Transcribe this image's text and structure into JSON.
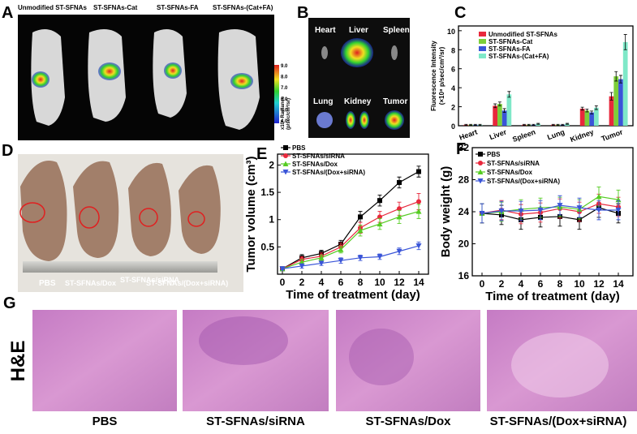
{
  "panel_a": {
    "label": "A",
    "mice": [
      "Unmodified ST-SFNAs",
      "ST-SFNAs-Cat",
      "ST-SFNAs-FA",
      "ST-SFNAs-(Cat+FA)"
    ],
    "colorbar_ticks": [
      "9.0",
      "8.0",
      "7.0",
      "6.0",
      "5.0",
      "4.0"
    ],
    "colorbar_title": [
      "x10⁸ Radiance",
      "(p/sec/cm²/sr)"
    ]
  },
  "panel_b": {
    "label": "B",
    "organs": [
      "Heart",
      "Liver",
      "Spleen",
      "Lung",
      "Kidney",
      "Tumor"
    ]
  },
  "panel_d": {
    "label": "D",
    "groups": [
      "PBS",
      "ST-SFNAs/Dox",
      "ST-SFNAs/siRNA",
      "ST-SFNAs/(Dox+siRNA)"
    ]
  },
  "panel_g": {
    "label": "G",
    "stain": "H&E",
    "groups": [
      "PBS",
      "ST-SFNAs/siRNA",
      "ST-SFNAs/Dox",
      "ST-SFNAs/(Dox+siRNA)"
    ]
  },
  "chart_data": [
    {
      "type": "bar",
      "panel_label": "C",
      "ylabel": [
        "Fluorescence Intensity",
        "(×10⁸ p/sec/cm²/sr)"
      ],
      "categories": [
        "Heart",
        "Liver",
        "Spleen",
        "Lung",
        "Kidney",
        "Tumor"
      ],
      "series": [
        {
          "name": "Unmodified ST-SFNAs",
          "color": "#e8283c",
          "values": [
            0.1,
            2.1,
            0.1,
            0.1,
            1.8,
            3.1
          ],
          "errors": [
            0.05,
            0.2,
            0.05,
            0.05,
            0.15,
            0.4
          ]
        },
        {
          "name": "ST-SFNAs-Cat",
          "color": "#7ccf3a",
          "values": [
            0.1,
            2.3,
            0.1,
            0.1,
            1.6,
            5.2
          ],
          "errors": [
            0.05,
            0.2,
            0.05,
            0.05,
            0.15,
            0.5
          ]
        },
        {
          "name": "ST-SFNAs-FA",
          "color": "#3a55d8",
          "values": [
            0.1,
            1.6,
            0.1,
            0.1,
            1.4,
            4.9
          ],
          "errors": [
            0.05,
            0.2,
            0.05,
            0.05,
            0.15,
            0.4
          ]
        },
        {
          "name": "ST-SFNAs-(Cat+FA)",
          "color": "#7fe8c8",
          "values": [
            0.1,
            3.3,
            0.2,
            0.2,
            1.9,
            8.8
          ],
          "errors": [
            0.05,
            0.3,
            0.05,
            0.05,
            0.2,
            0.8
          ]
        }
      ],
      "ylim": [
        0,
        10.5
      ],
      "yticks": [
        0,
        2,
        4,
        6,
        8,
        10
      ]
    },
    {
      "type": "line",
      "panel_label": "E",
      "xlabel": "Time of treatment (day)",
      "ylabel": "Tumor volume (cm³)",
      "x": [
        0,
        2,
        4,
        6,
        8,
        10,
        12,
        14
      ],
      "series": [
        {
          "name": "PBS",
          "color": "#000000",
          "marker": "square",
          "values": [
            0.1,
            0.3,
            0.38,
            0.55,
            1.05,
            1.35,
            1.68,
            1.88
          ],
          "errors": [
            0.02,
            0.06,
            0.06,
            0.07,
            0.1,
            0.1,
            0.1,
            0.1
          ]
        },
        {
          "name": "ST-SFNAs/siRNA",
          "color": "#e8283c",
          "marker": "circle",
          "values": [
            0.1,
            0.27,
            0.33,
            0.5,
            0.85,
            1.05,
            1.2,
            1.33
          ],
          "errors": [
            0.02,
            0.05,
            0.06,
            0.07,
            0.1,
            0.1,
            0.12,
            0.15
          ]
        },
        {
          "name": "ST-SFNAs/Dox",
          "color": "#55cc22",
          "marker": "triangle",
          "values": [
            0.1,
            0.22,
            0.3,
            0.45,
            0.8,
            0.92,
            1.05,
            1.15
          ],
          "errors": [
            0.02,
            0.05,
            0.05,
            0.06,
            0.1,
            0.1,
            0.12,
            0.13
          ]
        },
        {
          "name": "ST-SFNAs/(Dox+siRNA)",
          "color": "#3a55d8",
          "marker": "down",
          "values": [
            0.1,
            0.15,
            0.2,
            0.25,
            0.3,
            0.32,
            0.42,
            0.52
          ],
          "errors": [
            0.02,
            0.04,
            0.04,
            0.05,
            0.05,
            0.05,
            0.06,
            0.07
          ]
        }
      ],
      "xlim": [
        -0.5,
        15
      ],
      "xticks": [
        0,
        2,
        4,
        6,
        8,
        10,
        12,
        14
      ],
      "ylim": [
        0,
        2.2
      ],
      "yticks": [
        0.5,
        1,
        1.5,
        2
      ]
    },
    {
      "type": "line",
      "panel_label": "F",
      "xlabel": "Time of treatment (day)",
      "ylabel": "Body weight (g)",
      "x": [
        0,
        2,
        4,
        6,
        8,
        10,
        12,
        14
      ],
      "series": [
        {
          "name": "PBS",
          "color": "#000000",
          "marker": "square",
          "values": [
            23.8,
            23.6,
            23.0,
            23.3,
            23.4,
            23.0,
            24.5,
            23.8
          ],
          "errors": [
            1.2,
            1.2,
            1.2,
            1.2,
            1.2,
            1.2,
            1.2,
            1.2
          ]
        },
        {
          "name": "ST-SFNAs/siRNA",
          "color": "#e8283c",
          "marker": "circle",
          "values": [
            23.8,
            24.2,
            23.7,
            23.9,
            24.4,
            24.0,
            25.0,
            24.6
          ],
          "errors": [
            1.2,
            1.2,
            1.2,
            1.2,
            1.2,
            1.2,
            1.2,
            1.2
          ]
        },
        {
          "name": "ST-SFNAs/Dox",
          "color": "#55cc22",
          "marker": "triangle",
          "values": [
            23.8,
            24.0,
            24.3,
            24.5,
            24.6,
            24.3,
            25.9,
            25.5
          ],
          "errors": [
            1.2,
            1.2,
            1.2,
            1.2,
            1.2,
            1.2,
            1.2,
            1.2
          ]
        },
        {
          "name": "ST-SFNAs/(Dox+siRNA)",
          "color": "#3a55d8",
          "marker": "down",
          "values": [
            23.8,
            24.1,
            24.1,
            24.2,
            24.8,
            24.5,
            24.2,
            24.2
          ],
          "errors": [
            1.2,
            1.2,
            1.2,
            1.2,
            1.2,
            1.2,
            1.2,
            1.2
          ]
        }
      ],
      "xlim": [
        -1,
        15.5
      ],
      "xticks": [
        0,
        2,
        4,
        6,
        8,
        10,
        12,
        14
      ],
      "ylim": [
        16,
        32
      ],
      "yticks": [
        16,
        20,
        24,
        28,
        32
      ]
    }
  ]
}
